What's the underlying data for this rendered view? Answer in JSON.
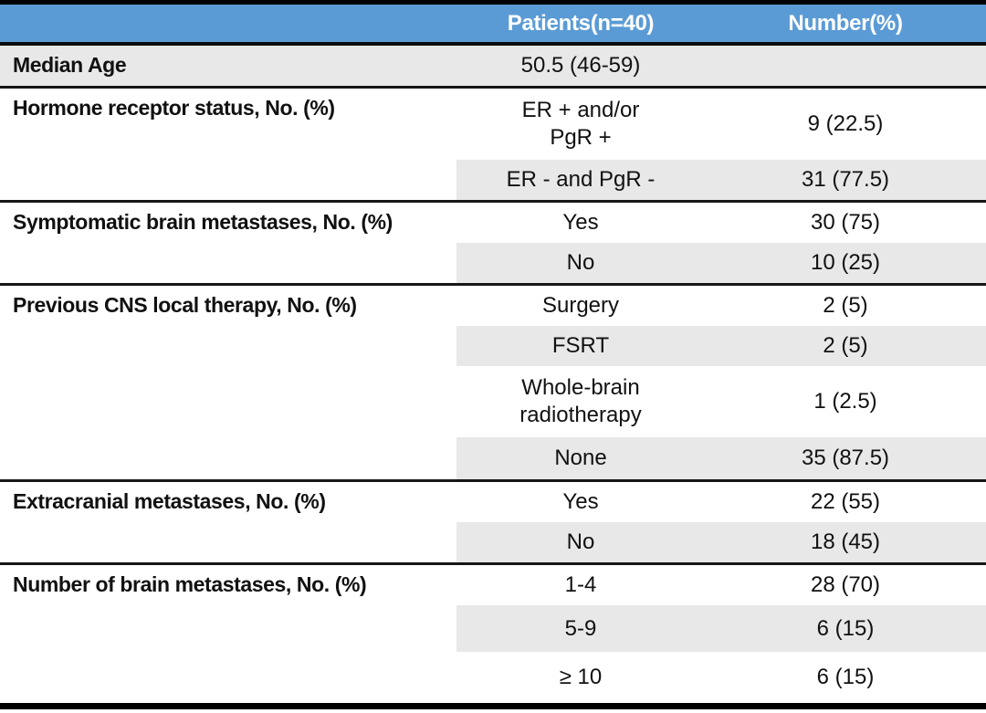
{
  "colors": {
    "header_bg": "#5b9bd5",
    "header_text": "#ffffff",
    "shaded_row_bg": "#e9e8e8",
    "border": "#000000"
  },
  "header": {
    "col_patients": "Patients(n=40)",
    "col_number": "Number(%)"
  },
  "sections": [
    {
      "label": "Median Age",
      "rows": [
        {
          "category": "50.5 (46-59)",
          "value": ""
        }
      ]
    },
    {
      "label": "Hormone receptor status, No. (%)",
      "rows": [
        {
          "category": "ER + and/or\nPgR +",
          "value": "9 (22.5)"
        },
        {
          "category": "ER - and PgR -",
          "value": "31 (77.5)"
        }
      ]
    },
    {
      "label": "Symptomatic brain metastases, No. (%)",
      "rows": [
        {
          "category": "Yes",
          "value": "30 (75)"
        },
        {
          "category": "No",
          "value": "10 (25)"
        }
      ]
    },
    {
      "label": "Previous CNS local therapy, No. (%)",
      "rows": [
        {
          "category": "Surgery",
          "value": "2 (5)"
        },
        {
          "category": "FSRT",
          "value": "2 (5)"
        },
        {
          "category": "Whole-brain\nradiotherapy",
          "value": "1 (2.5)"
        },
        {
          "category": "None",
          "value": "35 (87.5)"
        }
      ]
    },
    {
      "label": "Extracranial metastases, No. (%)",
      "rows": [
        {
          "category": "Yes",
          "value": "22 (55)"
        },
        {
          "category": "No",
          "value": "18 (45)"
        }
      ]
    },
    {
      "label": "Number of brain metastases, No. (%)",
      "rows": [
        {
          "category": "1-4",
          "value": "28 (70)"
        },
        {
          "category": "5-9",
          "value": "6 (15)"
        },
        {
          "category": "≥ 10",
          "value": "6 (15)"
        }
      ]
    }
  ],
  "chart_data": {
    "type": "table",
    "columns": [
      "",
      "Patients(n=40)",
      "Number(%)"
    ],
    "rows": [
      [
        "Median Age",
        "50.5 (46-59)",
        ""
      ],
      [
        "Hormone receptor status, No. (%)",
        "ER + and/or PgR +",
        "9 (22.5)"
      ],
      [
        "",
        "ER - and PgR -",
        "31 (77.5)"
      ],
      [
        "Symptomatic brain metastases, No. (%)",
        "Yes",
        "30 (75)"
      ],
      [
        "",
        "No",
        "10 (25)"
      ],
      [
        "Previous CNS local therapy, No. (%)",
        "Surgery",
        "2 (5)"
      ],
      [
        "",
        "FSRT",
        "2 (5)"
      ],
      [
        "",
        "Whole-brain radiotherapy",
        "1 (2.5)"
      ],
      [
        "",
        "None",
        "35 (87.5)"
      ],
      [
        "Extracranial metastases, No. (%)",
        "Yes",
        "22 (55)"
      ],
      [
        "",
        "No",
        "18 (45)"
      ],
      [
        "Number of brain metastases, No. (%)",
        "1-4",
        "28 (70)"
      ],
      [
        "",
        "5-9",
        "6 (15)"
      ],
      [
        "",
        "≥ 10",
        "6 (15)"
      ]
    ]
  }
}
